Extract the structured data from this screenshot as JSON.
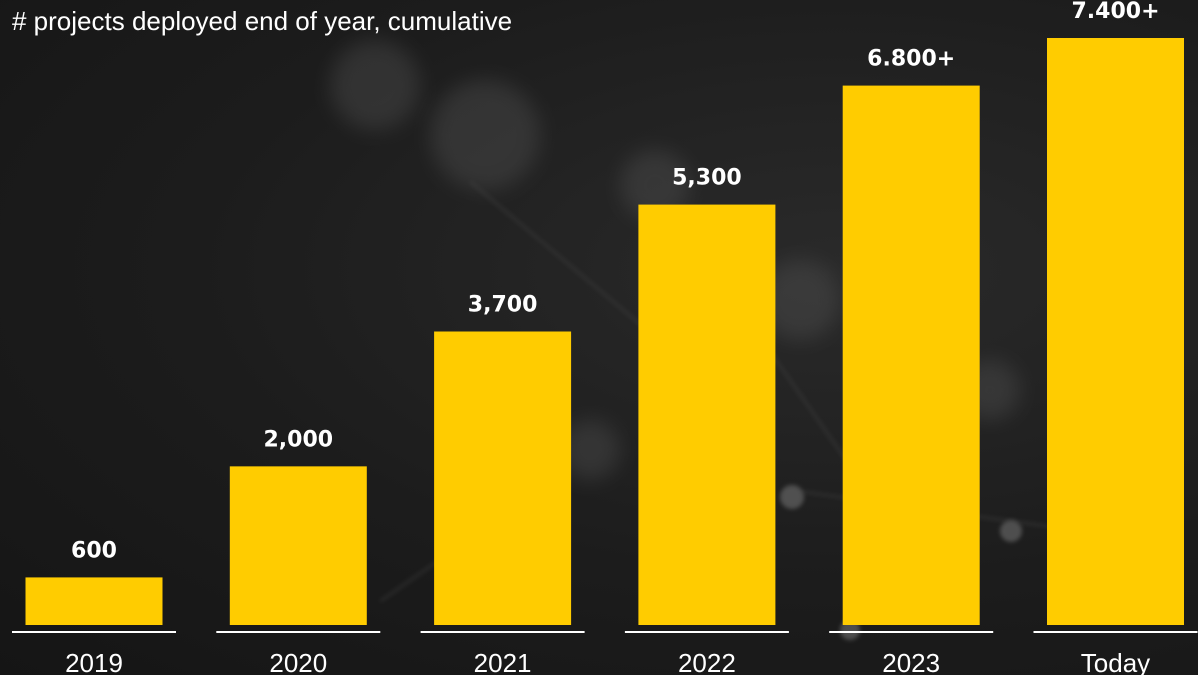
{
  "chart_data": {
    "type": "bar",
    "title": "# projects deployed end of year, cumulative",
    "categories": [
      "2019",
      "2020",
      "2021",
      "2022",
      "2023",
      "Today"
    ],
    "values": [
      600,
      2000,
      3700,
      5300,
      6800,
      7400
    ],
    "data_labels": [
      "600",
      "2,000",
      "3,700",
      "5,300",
      "6.800+",
      "7.400+"
    ],
    "ylim": [
      0,
      7400
    ],
    "grid": false,
    "legend": "none",
    "colors": {
      "bar": "#FFCC00",
      "text": "#FFFFFF",
      "baseline": "#FFFFFF",
      "background": "#1A1A1A"
    }
  }
}
